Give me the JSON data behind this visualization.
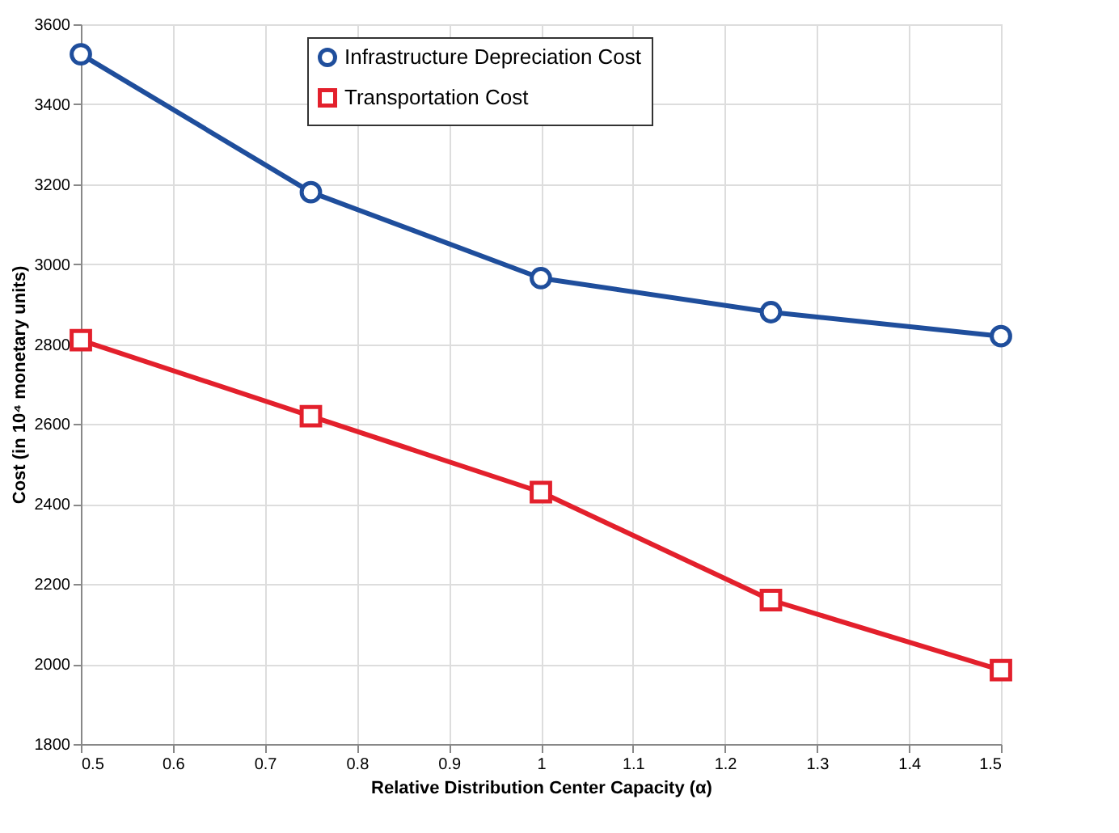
{
  "chart_data": {
    "type": "line",
    "xlabel": "Relative Distribution Center Capacity (α)",
    "ylabel": "Cost (in 10⁴ monetary units)",
    "x": [
      0.5,
      0.75,
      1,
      1.25,
      1.5
    ],
    "series": [
      {
        "name": "Infrastructure Depreciation Cost",
        "color": "#1f4e9c",
        "marker": "circle",
        "values": [
          3525,
          3180,
          2965,
          2880,
          2820
        ]
      },
      {
        "name": "Transportation Cost",
        "color": "#e3202c",
        "marker": "square",
        "values": [
          2810,
          2620,
          2430,
          2160,
          1985
        ]
      }
    ],
    "xlim": [
      0.5,
      1.5
    ],
    "xticks": [
      0.5,
      0.6,
      0.7,
      0.8,
      0.9,
      1,
      1.1,
      1.2,
      1.3,
      1.4,
      1.5
    ],
    "ylim": [
      1800,
      3600
    ],
    "yticks": [
      1800,
      2000,
      2200,
      2400,
      2600,
      2800,
      3000,
      3200,
      3400,
      3600
    ],
    "grid": true,
    "legend": "top",
    "line_style": "solid"
  }
}
